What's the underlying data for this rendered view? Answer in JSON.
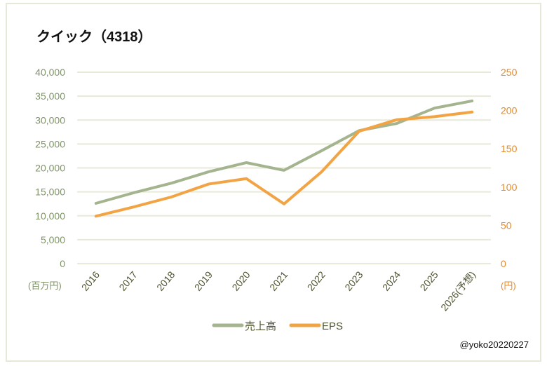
{
  "chart_data": {
    "type": "line",
    "title": "クイック（4318）",
    "categories": [
      "2016",
      "2017",
      "2018",
      "2019",
      "2020",
      "2021",
      "2022",
      "2023",
      "2024",
      "2025",
      "2026(予想)"
    ],
    "series": [
      {
        "name": "売上高",
        "axis": "left",
        "color": "#a4b48e",
        "values": [
          12600,
          14800,
          16800,
          19200,
          21100,
          19500,
          23600,
          27800,
          29300,
          32500,
          34000
        ]
      },
      {
        "name": "EPS",
        "axis": "right",
        "color": "#f2a445",
        "values": [
          62,
          74,
          87,
          104,
          111,
          78,
          120,
          173,
          188,
          192,
          198
        ]
      }
    ],
    "ylabel_left": "(百万円)",
    "ylabel_right": "(円)",
    "ylim_left": [
      0,
      40000
    ],
    "yticks_left": [
      "0",
      "5,000",
      "10,000",
      "15,000",
      "20,000",
      "25,000",
      "30,000",
      "35,000",
      "40,000"
    ],
    "ylim_right": [
      0,
      250
    ],
    "yticks_right": [
      "0",
      "50",
      "100",
      "150",
      "200",
      "250"
    ],
    "grid": true,
    "legend": "bottom",
    "left_color": "#7f9466",
    "right_color": "#e48a2a"
  },
  "credit": "@yoko20220227"
}
